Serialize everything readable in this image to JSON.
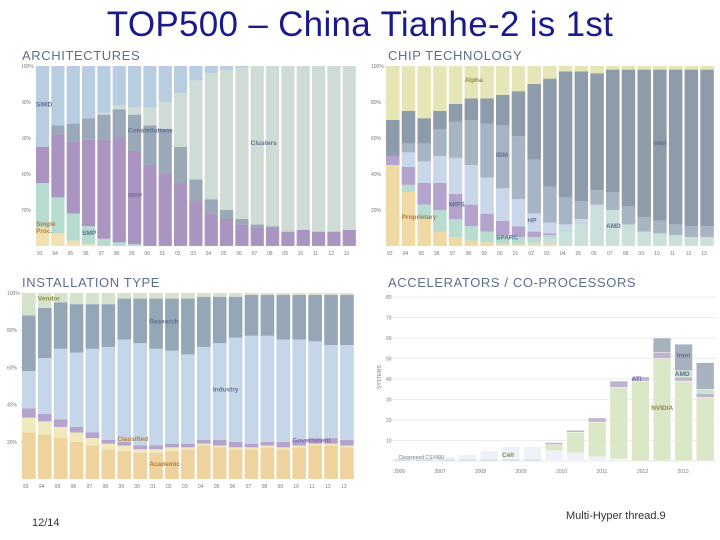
{
  "slide": {
    "title": "TOP500 – China Tianhe-2 is 1st",
    "page_number": "12/14",
    "footer": "Multi-Hyper thread.9"
  },
  "colors": {
    "simd": "#b8cde0",
    "constellations": "#9aa8b8",
    "clusters": "#cfdcd6",
    "mpp": "#a995c0",
    "smp": "#b5dccf",
    "single": "#f2e0b0",
    "alpha": "#e6e5b5",
    "ibm": "#a7b4c2",
    "hp": "#c9d7e8",
    "mips": "#b4a3cc",
    "sparc": "#b8dccf",
    "intel": "#8e9ba9",
    "amd": "#cbe0da",
    "proprietary": "#f0d9a4",
    "vendor": "#d4e3cc",
    "research": "#97a6b6",
    "industry": "#c4d6e8",
    "classified": "#f1e8be",
    "academic": "#efd39e",
    "government": "#b4a3cc",
    "nvidia": "#dbe8c8",
    "ati": "#bfb3cf",
    "amdacc": "#c7e3d3",
    "intelacc": "#a7b2be",
    "cell": "#ecf2f7",
    "clearspeed": "#cfdce8",
    "label_ink": "#5d7090",
    "label_ink2": "#7c6aa0",
    "label_ink3": "#8a8a40",
    "label_ink4": "#b87a3a"
  },
  "chart_data": [
    {
      "type": "area",
      "title": "ARCHITECTURES",
      "stacking": "percent",
      "x": [
        "93",
        "94",
        "95",
        "96",
        "97",
        "98",
        "99",
        "00",
        "01",
        "02",
        "03",
        "04",
        "05",
        "06",
        "07",
        "08",
        "09",
        "10",
        "11",
        "12",
        "13"
      ],
      "ylim": [
        0,
        100
      ],
      "yticks": [
        "100%",
        "80%",
        "60%",
        "40%",
        "20%"
      ],
      "series": [
        {
          "name": "Single Proc.",
          "values": [
            10,
            7,
            3,
            1,
            0,
            0,
            0,
            0,
            0,
            0,
            0,
            0,
            0,
            0,
            0,
            0,
            0,
            0,
            0,
            0,
            0
          ]
        },
        {
          "name": "SMP",
          "values": [
            25,
            20,
            15,
            10,
            4,
            2,
            1,
            0,
            0,
            0,
            0,
            0,
            0,
            0,
            0,
            0,
            0,
            0,
            0,
            0,
            0
          ]
        },
        {
          "name": "MPP",
          "values": [
            20,
            35,
            40,
            48,
            55,
            58,
            52,
            45,
            40,
            35,
            25,
            18,
            15,
            12,
            10,
            10,
            8,
            9,
            8,
            8,
            9
          ]
        },
        {
          "name": "Constellations",
          "values": [
            0,
            5,
            10,
            12,
            14,
            16,
            20,
            22,
            25,
            20,
            12,
            8,
            5,
            3,
            2,
            1,
            0,
            0,
            0,
            0,
            0
          ]
        },
        {
          "name": "Clusters",
          "values": [
            0,
            0,
            0,
            0,
            1,
            2,
            4,
            10,
            15,
            30,
            55,
            70,
            78,
            84,
            88,
            89,
            92,
            91,
            92,
            92,
            91
          ]
        },
        {
          "name": "SIMD",
          "values": [
            45,
            33,
            32,
            29,
            26,
            22,
            23,
            23,
            20,
            15,
            8,
            4,
            2,
            1,
            0,
            0,
            0,
            0,
            0,
            0,
            0
          ]
        }
      ]
    },
    {
      "type": "area",
      "title": "CHIP TECHNOLOGY",
      "stacking": "percent",
      "x": [
        "93",
        "94",
        "95",
        "96",
        "97",
        "98",
        "99",
        "00",
        "01",
        "02",
        "03",
        "04",
        "05",
        "06",
        "07",
        "08",
        "09",
        "10",
        "11",
        "12",
        "13"
      ],
      "ylim": [
        0,
        100
      ],
      "yticks": [
        "100%",
        "80%",
        "60%",
        "40%",
        "20%"
      ],
      "series": [
        {
          "name": "Proprietary",
          "values": [
            45,
            30,
            15,
            8,
            5,
            3,
            2,
            1,
            1,
            1,
            1,
            0,
            0,
            0,
            0,
            0,
            0,
            0,
            0,
            0,
            0
          ]
        },
        {
          "name": "AMD",
          "values": [
            0,
            0,
            0,
            0,
            0,
            0,
            0,
            0,
            0,
            1,
            3,
            8,
            12,
            22,
            20,
            12,
            8,
            7,
            6,
            5,
            5
          ]
        },
        {
          "name": "SPARC",
          "values": [
            0,
            4,
            8,
            12,
            10,
            8,
            6,
            5,
            4,
            3,
            2,
            1,
            1,
            0,
            0,
            0,
            0,
            0,
            0,
            0,
            0
          ]
        },
        {
          "name": "MIPS",
          "values": [
            5,
            10,
            12,
            15,
            14,
            12,
            10,
            8,
            6,
            3,
            1,
            0,
            0,
            0,
            0,
            0,
            0,
            0,
            0,
            0,
            0
          ]
        },
        {
          "name": "HP",
          "values": [
            0,
            8,
            12,
            15,
            20,
            22,
            20,
            18,
            15,
            10,
            6,
            3,
            2,
            1,
            0,
            0,
            0,
            0,
            0,
            0,
            0
          ]
        },
        {
          "name": "IBM",
          "values": [
            0,
            5,
            10,
            15,
            20,
            25,
            30,
            35,
            35,
            30,
            20,
            15,
            10,
            8,
            10,
            10,
            8,
            7,
            6,
            6,
            6
          ]
        },
        {
          "name": "Intel",
          "values": [
            20,
            18,
            14,
            10,
            10,
            12,
            14,
            17,
            25,
            42,
            60,
            70,
            72,
            65,
            68,
            76,
            82,
            84,
            86,
            87,
            87
          ]
        },
        {
          "name": "Alpha",
          "values": [
            30,
            25,
            29,
            25,
            21,
            18,
            18,
            16,
            14,
            10,
            7,
            3,
            3,
            4,
            2,
            2,
            2,
            2,
            2,
            2,
            2
          ]
        }
      ]
    },
    {
      "type": "area",
      "title": "INSTALLATION TYPE",
      "stacking": "percent",
      "x": [
        "93",
        "94",
        "95",
        "96",
        "97",
        "98",
        "99",
        "00",
        "01",
        "02",
        "03",
        "04",
        "05",
        "06",
        "07",
        "08",
        "09",
        "10",
        "11",
        "12",
        "13"
      ],
      "ylim": [
        0,
        100
      ],
      "yticks": [
        "100%",
        "80%",
        "60%",
        "40%",
        "20%"
      ],
      "series": [
        {
          "name": "Academic",
          "values": [
            25,
            24,
            22,
            20,
            18,
            16,
            15,
            14,
            14,
            15,
            16,
            18,
            17,
            16,
            16,
            17,
            16,
            17,
            18,
            18,
            17
          ]
        },
        {
          "name": "Classified",
          "values": [
            8,
            7,
            6,
            5,
            4,
            3,
            3,
            2,
            2,
            2,
            1,
            1,
            1,
            1,
            1,
            1,
            1,
            1,
            1,
            1,
            1
          ]
        },
        {
          "name": "Government",
          "values": [
            5,
            4,
            4,
            3,
            3,
            2,
            2,
            2,
            2,
            2,
            2,
            2,
            3,
            3,
            2,
            2,
            3,
            3,
            3,
            3,
            3
          ]
        },
        {
          "name": "Industry",
          "values": [
            20,
            30,
            38,
            40,
            45,
            50,
            55,
            55,
            52,
            50,
            48,
            50,
            52,
            56,
            58,
            57,
            55,
            54,
            52,
            50,
            51
          ]
        },
        {
          "name": "Research",
          "values": [
            30,
            27,
            25,
            26,
            24,
            23,
            22,
            24,
            27,
            28,
            30,
            27,
            25,
            22,
            22,
            22,
            24,
            24,
            25,
            27,
            27
          ]
        },
        {
          "name": "Vendor",
          "values": [
            12,
            8,
            5,
            6,
            6,
            6,
            3,
            3,
            3,
            3,
            3,
            2,
            2,
            2,
            1,
            1,
            1,
            1,
            1,
            1,
            1
          ]
        }
      ]
    },
    {
      "type": "bar",
      "title": "ACCELERATORS / CO-PROCESSORS",
      "stacking": "stacked",
      "ylabel": "SYSTEMS",
      "ylim": [
        0,
        80
      ],
      "yticks": [
        "80",
        "70",
        "60",
        "50",
        "40",
        "30",
        "20",
        "10"
      ],
      "x_ticks": [
        "2006",
        "2007",
        "2008",
        "2009",
        "2010",
        "2011",
        "2012",
        "2013"
      ],
      "labels": {
        "cell": "Cell",
        "clearspeed": "Clearspeed CSX600"
      },
      "series": [
        {
          "name": "Clearspeed CSX600",
          "values": [
            1,
            1,
            1,
            1,
            1,
            1,
            1,
            0,
            0,
            0,
            0,
            0,
            0,
            0,
            0
          ]
        },
        {
          "name": "Cell",
          "values": [
            0,
            0,
            1,
            2,
            4,
            6,
            6,
            5,
            4,
            2,
            1,
            0,
            0,
            0,
            0
          ]
        },
        {
          "name": "NVIDIA",
          "values": [
            0,
            0,
            0,
            0,
            0,
            0,
            0,
            3,
            10,
            17,
            35,
            39,
            50,
            39,
            31
          ]
        },
        {
          "name": "ATI",
          "values": [
            0,
            0,
            0,
            0,
            0,
            0,
            0,
            1,
            1,
            2,
            3,
            2,
            3,
            2,
            2
          ]
        },
        {
          "name": "AMD",
          "values": [
            0,
            0,
            0,
            0,
            0,
            0,
            0,
            0,
            0,
            0,
            0,
            0,
            0,
            3,
            2
          ]
        },
        {
          "name": "Intel",
          "values": [
            0,
            0,
            0,
            0,
            0,
            0,
            0,
            0,
            0,
            0,
            0,
            0,
            7,
            13,
            13
          ]
        }
      ]
    }
  ]
}
